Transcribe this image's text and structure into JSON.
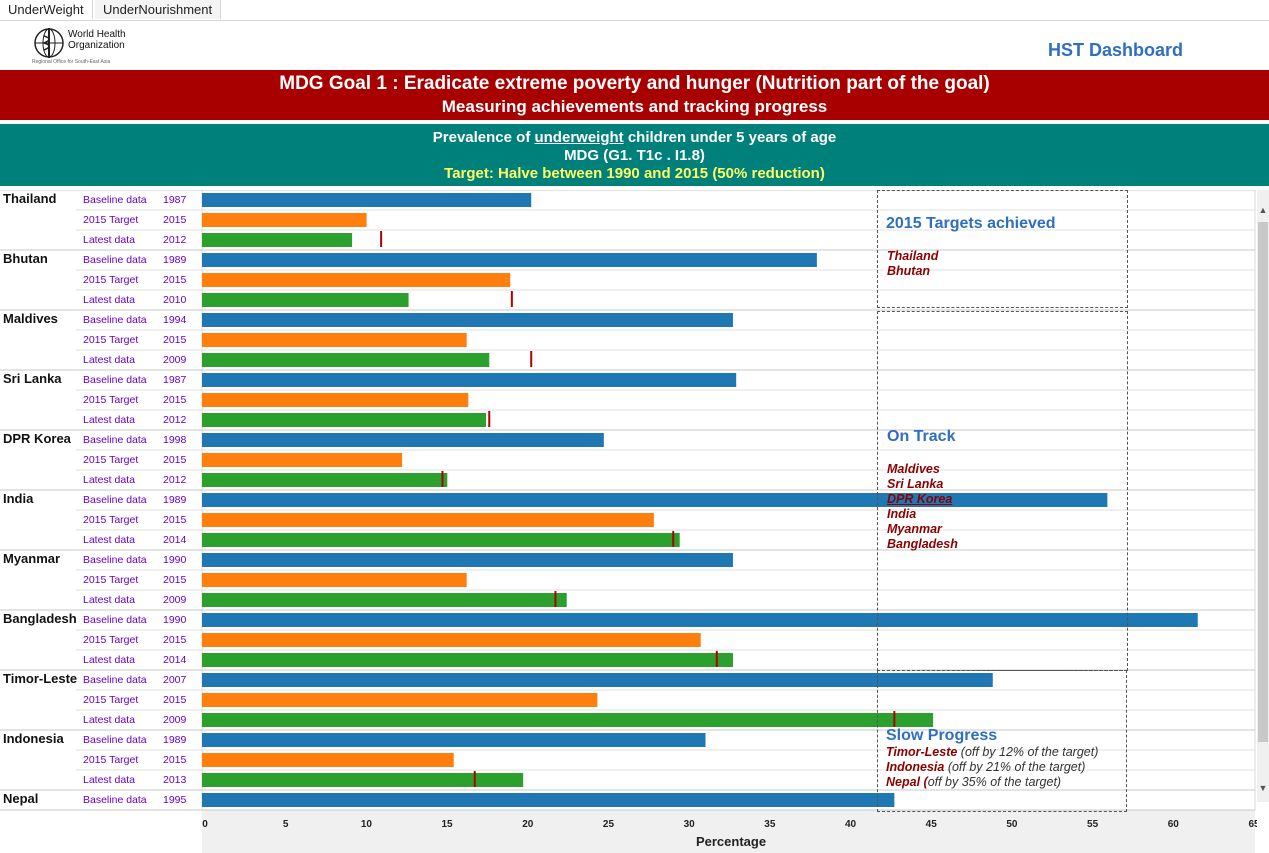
{
  "tabs": [
    {
      "label": "UnderWeight",
      "active": true
    },
    {
      "label": "UnderNourishment",
      "active": false
    }
  ],
  "logo": {
    "line1": "World Health",
    "line2": "Organization",
    "line3": "Regional Office for South-East Asia"
  },
  "dashboard_title": "HST Dashboard",
  "header": {
    "line1": "MDG Goal 1 : Eradicate extreme poverty and hunger (Nutrition part of the goal)",
    "line2": "Measuring achievements and tracking progress"
  },
  "subheader": {
    "line1_pre": "Prevalence of ",
    "line1_ul": "underweight",
    "line1_post": " children under 5 years of age",
    "line2": "MDG (G1. T1c . I1.8)",
    "line3": "Target: Halve between 1990 and 2015 (50% reduction)"
  },
  "colors": {
    "baseline": "#1f77b4",
    "target": "#ff7f0e",
    "latest": "#2ca02c",
    "marker": "#b00000",
    "label": "#6600cc",
    "red_band": "#a80000",
    "teal_band": "#00807a"
  },
  "chart_data": {
    "type": "bar",
    "orientation": "horizontal",
    "xlabel": "Percentage",
    "xlim": [
      0,
      65
    ],
    "xticks": [
      0,
      5,
      10,
      15,
      20,
      25,
      30,
      35,
      40,
      45,
      50,
      55,
      60,
      65
    ],
    "countries": [
      {
        "name": "Thailand",
        "rows": [
          {
            "label": "Baseline data",
            "year": "1987",
            "value": 20.4,
            "kind": "baseline"
          },
          {
            "label": "2015 Target",
            "year": "2015",
            "value": 10.2,
            "kind": "target"
          },
          {
            "label": "Latest data",
            "year": "2012",
            "value": 9.3,
            "kind": "latest",
            "marker": 11.1
          }
        ]
      },
      {
        "name": "Bhutan",
        "rows": [
          {
            "label": "Baseline data",
            "year": "1989",
            "value": 38.1,
            "kind": "baseline"
          },
          {
            "label": "2015 Target",
            "year": "2015",
            "value": 19.1,
            "kind": "target"
          },
          {
            "label": "Latest data",
            "year": "2010",
            "value": 12.8,
            "kind": "latest",
            "marker": 19.2
          }
        ]
      },
      {
        "name": "Maldives",
        "rows": [
          {
            "label": "Baseline data",
            "year": "1994",
            "value": 32.9,
            "kind": "baseline"
          },
          {
            "label": "2015 Target",
            "year": "2015",
            "value": 16.4,
            "kind": "target"
          },
          {
            "label": "Latest data",
            "year": "2009",
            "value": 17.8,
            "kind": "latest",
            "marker": 20.4
          }
        ]
      },
      {
        "name": "Sri Lanka",
        "rows": [
          {
            "label": "Baseline data",
            "year": "1987",
            "value": 33.1,
            "kind": "baseline"
          },
          {
            "label": "2015 Target",
            "year": "2015",
            "value": 16.5,
            "kind": "target"
          },
          {
            "label": "Latest data",
            "year": "2012",
            "value": 17.6,
            "kind": "latest",
            "marker": 17.8
          }
        ]
      },
      {
        "name": "DPR Korea",
        "rows": [
          {
            "label": "Baseline data",
            "year": "1998",
            "value": 24.9,
            "kind": "baseline"
          },
          {
            "label": "2015 Target",
            "year": "2015",
            "value": 12.4,
            "kind": "target"
          },
          {
            "label": "Latest data",
            "year": "2012",
            "value": 15.2,
            "kind": "latest",
            "marker": 14.9
          }
        ]
      },
      {
        "name": "India",
        "rows": [
          {
            "label": "Baseline data",
            "year": "1989",
            "value": 56.1,
            "kind": "baseline"
          },
          {
            "label": "2015 Target",
            "year": "2015",
            "value": 28.0,
            "kind": "target"
          },
          {
            "label": "Latest data",
            "year": "2014",
            "value": 29.6,
            "kind": "latest",
            "marker": 29.2
          }
        ]
      },
      {
        "name": "Myanmar",
        "rows": [
          {
            "label": "Baseline data",
            "year": "1990",
            "value": 32.9,
            "kind": "baseline"
          },
          {
            "label": "2015 Target",
            "year": "2015",
            "value": 16.4,
            "kind": "target"
          },
          {
            "label": "Latest data",
            "year": "2009",
            "value": 22.6,
            "kind": "latest",
            "marker": 21.9
          }
        ]
      },
      {
        "name": "Bangladesh",
        "rows": [
          {
            "label": "Baseline data",
            "year": "1990",
            "value": 61.7,
            "kind": "baseline"
          },
          {
            "label": "2015 Target",
            "year": "2015",
            "value": 30.9,
            "kind": "target"
          },
          {
            "label": "Latest data",
            "year": "2014",
            "value": 32.9,
            "kind": "latest",
            "marker": 31.9
          }
        ]
      },
      {
        "name": "Timor-Leste",
        "rows": [
          {
            "label": "Baseline data",
            "year": "2007",
            "value": 49.0,
            "kind": "baseline"
          },
          {
            "label": "2015 Target",
            "year": "2015",
            "value": 24.5,
            "kind": "target"
          },
          {
            "label": "Latest data",
            "year": "2009",
            "value": 45.3,
            "kind": "latest",
            "marker": 42.9
          }
        ]
      },
      {
        "name": "Indonesia",
        "rows": [
          {
            "label": "Baseline data",
            "year": "1989",
            "value": 31.2,
            "kind": "baseline"
          },
          {
            "label": "2015 Target",
            "year": "2015",
            "value": 15.6,
            "kind": "target"
          },
          {
            "label": "Latest data",
            "year": "2013",
            "value": 19.9,
            "kind": "latest",
            "marker": 16.9
          }
        ]
      },
      {
        "name": "Nepal",
        "rows": [
          {
            "label": "Baseline data",
            "year": "1995",
            "value": 42.9,
            "kind": "baseline"
          }
        ]
      }
    ]
  },
  "panels": {
    "achieved": {
      "title": "2015 Targets achieved",
      "countries": [
        "Thailand",
        "Bhutan"
      ]
    },
    "on_track": {
      "title": "On Track",
      "countries": [
        "Maldives",
        "Sri Lanka",
        "DPR Korea",
        "India",
        "Myanmar",
        "Bangladesh"
      ]
    },
    "slow": {
      "title": "Slow Progress",
      "items": [
        {
          "country": "Timor-Leste",
          "note": " (off by 12% of the target)"
        },
        {
          "country": "Indonesia",
          "note": " (off by 21% of the target)"
        },
        {
          "country": "Nepal (",
          "note": "off  by 35% of the target)"
        }
      ]
    }
  }
}
